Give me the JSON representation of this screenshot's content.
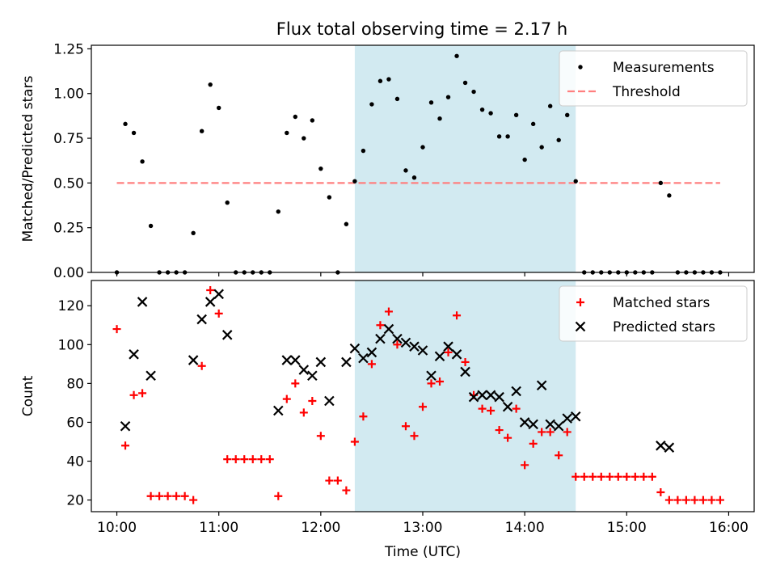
{
  "figure": {
    "title": "Flux total observing time = 2.17 h",
    "shaded_window": {
      "start": "12:20",
      "end": "14:30",
      "color": "#add8e6"
    }
  },
  "colors": {
    "measurement": "#000000",
    "threshold": "#ff7f7f",
    "matched": "#ff0000",
    "predicted": "#000000"
  },
  "chart_data": [
    {
      "type": "scatter",
      "ylabel": "Matched/Predicted stars",
      "xlim": [
        "09:45",
        "16:15"
      ],
      "ylim": [
        0,
        1.27
      ],
      "x_ticks": [
        "10:00",
        "11:00",
        "12:00",
        "13:00",
        "14:00",
        "15:00",
        "16:00"
      ],
      "y_ticks": [
        "0.00",
        "0.25",
        "0.50",
        "0.75",
        "1.00",
        "1.25"
      ],
      "legend": "top-right",
      "threshold": {
        "name": "Threshold",
        "y": 0.5,
        "x_range": [
          "10:00",
          "15:55"
        ]
      },
      "series": [
        {
          "name": "Measurements",
          "points": [
            [
              "10:00",
              0.0
            ],
            [
              "10:05",
              0.83
            ],
            [
              "10:10",
              0.78
            ],
            [
              "10:15",
              0.62
            ],
            [
              "10:20",
              0.26
            ],
            [
              "10:25",
              0.0
            ],
            [
              "10:30",
              0.0
            ],
            [
              "10:35",
              0.0
            ],
            [
              "10:40",
              0.0
            ],
            [
              "10:45",
              0.22
            ],
            [
              "10:50",
              0.79
            ],
            [
              "10:55",
              1.05
            ],
            [
              "11:00",
              0.92
            ],
            [
              "11:05",
              0.39
            ],
            [
              "11:10",
              0.0
            ],
            [
              "11:15",
              0.0
            ],
            [
              "11:20",
              0.0
            ],
            [
              "11:25",
              0.0
            ],
            [
              "11:30",
              0.0
            ],
            [
              "11:35",
              0.34
            ],
            [
              "11:40",
              0.78
            ],
            [
              "11:45",
              0.87
            ],
            [
              "11:50",
              0.75
            ],
            [
              "11:55",
              0.85
            ],
            [
              "12:00",
              0.58
            ],
            [
              "12:05",
              0.42
            ],
            [
              "12:10",
              0.0
            ],
            [
              "12:15",
              0.27
            ],
            [
              "12:20",
              0.51
            ],
            [
              "12:25",
              0.68
            ],
            [
              "12:30",
              0.94
            ],
            [
              "12:35",
              1.07
            ],
            [
              "12:40",
              1.08
            ],
            [
              "12:45",
              0.97
            ],
            [
              "12:50",
              0.57
            ],
            [
              "12:55",
              0.53
            ],
            [
              "13:00",
              0.7
            ],
            [
              "13:05",
              0.95
            ],
            [
              "13:10",
              0.86
            ],
            [
              "13:15",
              0.98
            ],
            [
              "13:20",
              1.21
            ],
            [
              "13:25",
              1.06
            ],
            [
              "13:30",
              1.01
            ],
            [
              "13:35",
              0.91
            ],
            [
              "13:40",
              0.89
            ],
            [
              "13:45",
              0.76
            ],
            [
              "13:50",
              0.76
            ],
            [
              "13:55",
              0.88
            ],
            [
              "14:00",
              0.63
            ],
            [
              "14:05",
              0.83
            ],
            [
              "14:10",
              0.7
            ],
            [
              "14:15",
              0.93
            ],
            [
              "14:20",
              0.74
            ],
            [
              "14:25",
              0.88
            ],
            [
              "14:30",
              0.51
            ],
            [
              "14:35",
              0.0
            ],
            [
              "14:40",
              0.0
            ],
            [
              "14:45",
              0.0
            ],
            [
              "14:50",
              0.0
            ],
            [
              "14:55",
              0.0
            ],
            [
              "15:00",
              0.0
            ],
            [
              "15:05",
              0.0
            ],
            [
              "15:10",
              0.0
            ],
            [
              "15:15",
              0.0
            ],
            [
              "15:20",
              0.5
            ],
            [
              "15:25",
              0.43
            ],
            [
              "15:30",
              0.0
            ],
            [
              "15:35",
              0.0
            ],
            [
              "15:40",
              0.0
            ],
            [
              "15:45",
              0.0
            ],
            [
              "15:50",
              0.0
            ],
            [
              "15:55",
              0.0
            ]
          ]
        }
      ]
    },
    {
      "type": "scatter",
      "xlabel": "Time (UTC)",
      "ylabel": "Count",
      "xlim": [
        "09:45",
        "16:15"
      ],
      "ylim": [
        14,
        133
      ],
      "x_ticks": [
        "10:00",
        "11:00",
        "12:00",
        "13:00",
        "14:00",
        "15:00",
        "16:00"
      ],
      "y_ticks": [
        "20",
        "40",
        "60",
        "80",
        "100",
        "120"
      ],
      "legend": "top-right",
      "series": [
        {
          "name": "Matched stars",
          "marker": "plus",
          "points": [
            [
              "10:00",
              108
            ],
            [
              "10:05",
              48
            ],
            [
              "10:10",
              74
            ],
            [
              "10:15",
              75
            ],
            [
              "10:20",
              22
            ],
            [
              "10:25",
              22
            ],
            [
              "10:30",
              22
            ],
            [
              "10:35",
              22
            ],
            [
              "10:40",
              22
            ],
            [
              "10:45",
              20
            ],
            [
              "10:50",
              89
            ],
            [
              "10:55",
              128
            ],
            [
              "11:00",
              116
            ],
            [
              "11:05",
              41
            ],
            [
              "11:10",
              41
            ],
            [
              "11:15",
              41
            ],
            [
              "11:20",
              41
            ],
            [
              "11:25",
              41
            ],
            [
              "11:30",
              41
            ],
            [
              "11:35",
              22
            ],
            [
              "11:40",
              72
            ],
            [
              "11:45",
              80
            ],
            [
              "11:50",
              65
            ],
            [
              "11:55",
              71
            ],
            [
              "12:00",
              53
            ],
            [
              "12:05",
              30
            ],
            [
              "12:10",
              30
            ],
            [
              "12:15",
              25
            ],
            [
              "12:20",
              50
            ],
            [
              "12:25",
              63
            ],
            [
              "12:30",
              90
            ],
            [
              "12:35",
              110
            ],
            [
              "12:40",
              117
            ],
            [
              "12:45",
              100
            ],
            [
              "12:50",
              58
            ],
            [
              "12:55",
              53
            ],
            [
              "13:00",
              68
            ],
            [
              "13:05",
              80
            ],
            [
              "13:10",
              81
            ],
            [
              "13:15",
              96
            ],
            [
              "13:20",
              115
            ],
            [
              "13:25",
              91
            ],
            [
              "13:30",
              74
            ],
            [
              "13:35",
              67
            ],
            [
              "13:40",
              66
            ],
            [
              "13:45",
              56
            ],
            [
              "13:50",
              52
            ],
            [
              "13:55",
              67
            ],
            [
              "14:00",
              38
            ],
            [
              "14:05",
              49
            ],
            [
              "14:10",
              55
            ],
            [
              "14:15",
              55
            ],
            [
              "14:20",
              43
            ],
            [
              "14:25",
              55
            ],
            [
              "14:30",
              32
            ],
            [
              "14:35",
              32
            ],
            [
              "14:40",
              32
            ],
            [
              "14:45",
              32
            ],
            [
              "14:50",
              32
            ],
            [
              "14:55",
              32
            ],
            [
              "15:00",
              32
            ],
            [
              "15:05",
              32
            ],
            [
              "15:10",
              32
            ],
            [
              "15:15",
              32
            ],
            [
              "15:20",
              24
            ],
            [
              "15:25",
              20
            ],
            [
              "15:30",
              20
            ],
            [
              "15:35",
              20
            ],
            [
              "15:40",
              20
            ],
            [
              "15:45",
              20
            ],
            [
              "15:50",
              20
            ],
            [
              "15:55",
              20
            ]
          ]
        },
        {
          "name": "Predicted stars",
          "marker": "x",
          "points": [
            [
              "10:05",
              58
            ],
            [
              "10:10",
              95
            ],
            [
              "10:15",
              122
            ],
            [
              "10:20",
              84
            ],
            [
              "10:45",
              92
            ],
            [
              "10:50",
              113
            ],
            [
              "10:55",
              122
            ],
            [
              "11:00",
              126
            ],
            [
              "11:05",
              105
            ],
            [
              "11:35",
              66
            ],
            [
              "11:40",
              92
            ],
            [
              "11:45",
              92
            ],
            [
              "11:50",
              87
            ],
            [
              "11:55",
              84
            ],
            [
              "12:00",
              91
            ],
            [
              "12:05",
              71
            ],
            [
              "12:15",
              91
            ],
            [
              "12:20",
              98
            ],
            [
              "12:25",
              93
            ],
            [
              "12:30",
              96
            ],
            [
              "12:35",
              103
            ],
            [
              "12:40",
              108
            ],
            [
              "12:45",
              103
            ],
            [
              "12:50",
              101
            ],
            [
              "12:55",
              99
            ],
            [
              "13:00",
              97
            ],
            [
              "13:05",
              84
            ],
            [
              "13:10",
              94
            ],
            [
              "13:15",
              99
            ],
            [
              "13:20",
              95
            ],
            [
              "13:25",
              86
            ],
            [
              "13:30",
              73
            ],
            [
              "13:35",
              74
            ],
            [
              "13:40",
              74
            ],
            [
              "13:45",
              73
            ],
            [
              "13:50",
              68
            ],
            [
              "13:55",
              76
            ],
            [
              "14:00",
              60
            ],
            [
              "14:05",
              59
            ],
            [
              "14:10",
              79
            ],
            [
              "14:15",
              59
            ],
            [
              "14:20",
              58
            ],
            [
              "14:25",
              62
            ],
            [
              "14:30",
              63
            ],
            [
              "15:20",
              48
            ],
            [
              "15:25",
              47
            ]
          ]
        }
      ]
    }
  ]
}
